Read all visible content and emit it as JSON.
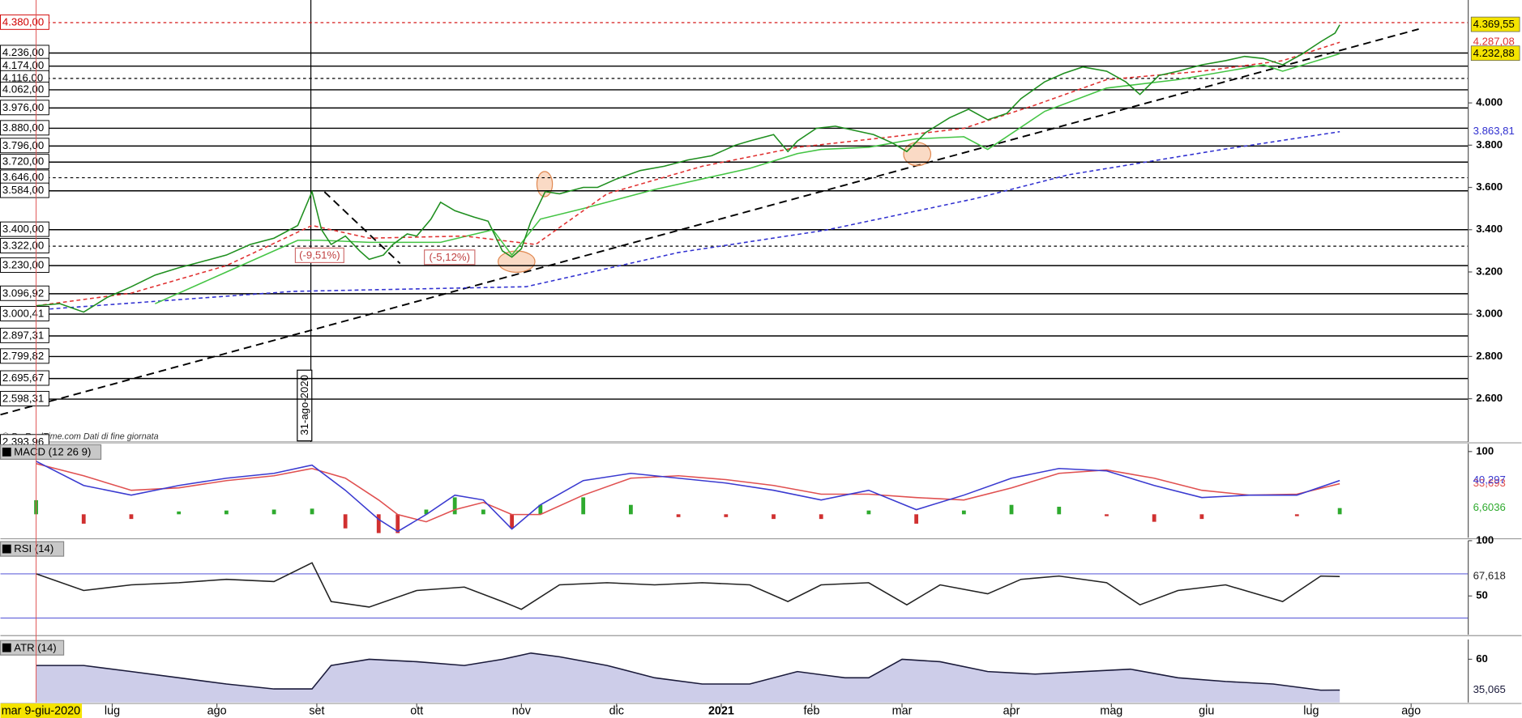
{
  "chart_data": [
    {
      "type": "line",
      "xlim": [
        -7.5,
        301
      ],
      "ylim": [
        2396,
        4487
      ],
      "yticks": [
        {
          "value": 4000,
          "label": "4.000"
        },
        {
          "value": 3800,
          "label": "3.800"
        },
        {
          "value": 3600,
          "label": "3.600"
        },
        {
          "value": 3400,
          "label": "3.400"
        },
        {
          "value": 3200,
          "label": "3.200"
        },
        {
          "value": 3000,
          "label": "3.000"
        },
        {
          "value": 2800,
          "label": "2.800"
        },
        {
          "value": 2600,
          "label": "2.600"
        }
      ],
      "levels": [
        {
          "value": 4380,
          "label": "4.380,00",
          "color": "#d00000",
          "dashed": true
        },
        {
          "value": 4236,
          "label": "4.236,00"
        },
        {
          "value": 4174,
          "label": "4.174,00"
        },
        {
          "value": 4116,
          "label": "4.116,00",
          "dashed": true
        },
        {
          "value": 4062,
          "label": "4.062,00"
        },
        {
          "value": 3976,
          "label": "3.976,00"
        },
        {
          "value": 3880,
          "label": "3.880,00"
        },
        {
          "value": 3796,
          "label": "3.796,00"
        },
        {
          "value": 3720,
          "label": "3.720,00"
        },
        {
          "value": 3646,
          "label": "3.646,00",
          "dashed": true
        },
        {
          "value": 3584,
          "label": "3.584,00"
        },
        {
          "value": 3400,
          "label": "3.400,00"
        },
        {
          "value": 3322,
          "label": "3.322,00",
          "dashed": true
        },
        {
          "value": 3230,
          "label": "3.230,00"
        },
        {
          "value": 3096.92,
          "label": "3.096,92"
        },
        {
          "value": 3000.41,
          "label": "3.000,41"
        },
        {
          "value": 2897.31,
          "label": "2.897,31"
        },
        {
          "value": 2799.82,
          "label": "2.799,82"
        },
        {
          "value": 2695.67,
          "label": "2.695,67"
        },
        {
          "value": 2598.31,
          "label": "2.598,31"
        },
        {
          "value": 2393.96,
          "label": "2.393,96"
        }
      ],
      "annotations": [
        "(-9,51%)",
        "(-5,12%)",
        "31-ago-2020",
        "© ProRealTime.com  Dati di fine giornata"
      ],
      "series": [
        {
          "color": "#3030d0",
          "dashed": true,
          "last_label": "3.863,81",
          "x": [
            0,
            54,
            103,
            135,
            166,
            197,
            217,
            248,
            274
          ],
          "values": [
            3020,
            3108,
            3130,
            3292,
            3398,
            3545,
            3660,
            3775,
            3863.81
          ]
        },
        {
          "color": "#44c444",
          "last_label": "4.232,88",
          "label_bg": "#f5e400",
          "label_color": "#000000",
          "x": [
            25,
            40,
            55,
            60,
            70,
            85,
            96,
            100,
            106,
            115,
            130,
            150,
            160,
            165,
            175,
            185,
            195,
            200,
            212,
            225,
            240,
            258,
            262,
            274
          ],
          "values": [
            3050,
            3200,
            3350,
            3350,
            3340,
            3340,
            3400,
            3280,
            3450,
            3500,
            3590,
            3690,
            3760,
            3780,
            3790,
            3830,
            3840,
            3780,
            3960,
            4070,
            4110,
            4180,
            4150,
            4232.88
          ]
        },
        {
          "color": "#e03030",
          "dashed": true,
          "last_label": "4.287,08",
          "x": [
            0,
            20,
            40,
            58,
            70,
            90,
            105,
            120,
            140,
            160,
            180,
            195,
            210,
            225,
            245,
            262,
            274
          ],
          "values": [
            3040,
            3100,
            3230,
            3420,
            3360,
            3370,
            3330,
            3570,
            3700,
            3790,
            3840,
            3880,
            3990,
            4110,
            4150,
            4200,
            4287.08
          ]
        },
        {
          "color": "#1f8f1f",
          "last_label": "4.369,55",
          "label_bg": "#f5e400",
          "label_color": "#000000",
          "x": [
            0,
            5,
            10,
            15,
            20,
            25,
            30,
            35,
            40,
            45,
            50,
            55,
            58,
            60,
            62,
            65,
            68,
            70,
            73,
            75,
            78,
            80,
            83,
            85,
            88,
            92,
            95,
            98,
            100,
            102,
            104,
            107,
            110,
            115,
            118,
            122,
            127,
            132,
            137,
            142,
            147,
            150,
            155,
            158,
            160,
            164,
            168,
            172,
            176,
            180,
            183,
            187,
            192,
            196,
            200,
            204,
            207,
            212,
            216,
            220,
            225,
            229,
            232,
            236,
            240,
            245,
            250,
            254,
            258,
            262,
            266,
            270,
            273,
            274
          ],
          "values": [
            3040,
            3050,
            3010,
            3080,
            3130,
            3185,
            3220,
            3250,
            3280,
            3330,
            3360,
            3420,
            3580,
            3400,
            3330,
            3370,
            3300,
            3260,
            3280,
            3330,
            3380,
            3370,
            3450,
            3530,
            3490,
            3460,
            3440,
            3300,
            3270,
            3310,
            3440,
            3580,
            3570,
            3600,
            3600,
            3640,
            3680,
            3700,
            3730,
            3750,
            3800,
            3820,
            3850,
            3770,
            3820,
            3880,
            3890,
            3870,
            3850,
            3810,
            3770,
            3860,
            3930,
            3970,
            3920,
            3950,
            4020,
            4100,
            4140,
            4170,
            4150,
            4100,
            4040,
            4130,
            4150,
            4180,
            4200,
            4220,
            4210,
            4180,
            4230,
            4290,
            4330,
            4369.55
          ]
        }
      ]
    },
    {
      "type": "line",
      "title": "MACD (12 26 9)",
      "xlim": [
        -7.5,
        301
      ],
      "ylim": [
        -78,
        116
      ],
      "yticks": [
        100
      ],
      "y2lim": [
        -25,
        75
      ],
      "series": [
        {
          "kind": "bar",
          "axis": "y2",
          "color": "#2eaa2e",
          "neg_color": "#d03030",
          "last_label": "6,6036",
          "x": [
            0,
            10,
            20,
            30,
            40,
            50,
            58,
            65,
            72,
            76,
            82,
            88,
            94,
            100,
            106,
            115,
            125,
            135,
            145,
            155,
            165,
            175,
            185,
            195,
            205,
            215,
            225,
            235,
            245,
            255,
            265,
            274
          ],
          "values": [
            15,
            -10,
            -5,
            3,
            4,
            5,
            6,
            -15,
            -20,
            -20,
            5,
            18,
            5,
            -15,
            10,
            18,
            10,
            -3,
            -3,
            -5,
            -5,
            4,
            -10,
            4,
            10,
            8,
            -2,
            -8,
            -5,
            0,
            -2,
            6.6036
          ]
        },
        {
          "color": "#e05050",
          "last_label": "33,693",
          "x": [
            0,
            10,
            20,
            30,
            40,
            50,
            58,
            65,
            72,
            76,
            82,
            88,
            94,
            100,
            106,
            115,
            125,
            135,
            145,
            155,
            165,
            175,
            185,
            195,
            205,
            215,
            225,
            235,
            245,
            255,
            265,
            274
          ],
          "values": [
            75,
            50,
            20,
            25,
            40,
            50,
            65,
            45,
            0,
            -30,
            -45,
            -20,
            -5,
            -30,
            -30,
            10,
            45,
            50,
            42,
            30,
            12,
            12,
            5,
            0,
            25,
            55,
            62,
            45,
            20,
            10,
            12,
            33.693
          ]
        },
        {
          "color": "#3a3ad0",
          "last_label": "40,297",
          "x": [
            0,
            10,
            20,
            30,
            40,
            50,
            58,
            65,
            72,
            76,
            82,
            88,
            94,
            100,
            106,
            115,
            125,
            135,
            145,
            155,
            165,
            175,
            185,
            195,
            205,
            215,
            225,
            235,
            245,
            255,
            265,
            274
          ],
          "values": [
            80,
            30,
            10,
            30,
            45,
            55,
            72,
            20,
            -40,
            -65,
            -30,
            10,
            0,
            -60,
            -10,
            40,
            55,
            45,
            35,
            20,
            0,
            20,
            -20,
            10,
            45,
            65,
            60,
            30,
            5,
            10,
            10,
            40.297
          ]
        }
      ]
    },
    {
      "type": "line",
      "title": "RSI (14)",
      "xlim": [
        -7.5,
        301
      ],
      "ylim": [
        15,
        100
      ],
      "yticks": [
        100,
        50
      ],
      "hlines": [
        70,
        30
      ],
      "hline_color": "#3a3ad0",
      "series": [
        {
          "color": "#222222",
          "last_label": "67,618",
          "x": [
            0,
            10,
            20,
            30,
            40,
            50,
            58,
            62,
            70,
            80,
            90,
            98,
            102,
            110,
            120,
            130,
            140,
            150,
            158,
            165,
            175,
            183,
            190,
            200,
            207,
            215,
            225,
            232,
            240,
            250,
            262,
            270,
            274
          ],
          "values": [
            70,
            55,
            60,
            62,
            65,
            63,
            80,
            45,
            40,
            55,
            58,
            45,
            38,
            60,
            62,
            60,
            62,
            60,
            45,
            60,
            62,
            42,
            60,
            52,
            65,
            68,
            62,
            42,
            55,
            60,
            45,
            68,
            67.618
          ]
        }
      ]
    },
    {
      "type": "area",
      "title": "ATR (14)",
      "xlim": [
        -7.5,
        301
      ],
      "ylim": [
        25,
        76
      ],
      "yticks": [
        60
      ],
      "cursor": {
        "value": 0,
        "label": "mar 9-giu-2020"
      },
      "xticks": [
        {
          "value": 16,
          "label": "lug"
        },
        {
          "value": 38,
          "label": "ago"
        },
        {
          "value": 59,
          "label": "set"
        },
        {
          "value": 80,
          "label": "ott"
        },
        {
          "value": 102,
          "label": "nov"
        },
        {
          "value": 122,
          "label": "dic"
        },
        {
          "value": 144,
          "label": "2021"
        },
        {
          "value": 163,
          "label": "feb"
        },
        {
          "value": 182,
          "label": "mar"
        },
        {
          "value": 205,
          "label": "apr"
        },
        {
          "value": 226,
          "label": "mag"
        },
        {
          "value": 246,
          "label": "giu"
        },
        {
          "value": 268,
          "label": "lug"
        },
        {
          "value": 289,
          "label": "ago"
        }
      ],
      "series": [
        {
          "color": "#1a1a3a",
          "fill": "#b8b8e0",
          "last_label": "35,065",
          "x": [
            0,
            10,
            20,
            30,
            40,
            50,
            58,
            62,
            70,
            80,
            90,
            98,
            104,
            110,
            120,
            130,
            140,
            150,
            160,
            170,
            175,
            182,
            190,
            200,
            210,
            220,
            230,
            240,
            250,
            260,
            270,
            274
          ],
          "values": [
            55,
            55,
            50,
            45,
            40,
            36,
            36,
            55,
            60,
            58,
            55,
            60,
            65,
            62,
            55,
            45,
            40,
            40,
            50,
            45,
            45,
            60,
            58,
            50,
            48,
            50,
            52,
            45,
            42,
            40,
            35,
            35.065
          ]
        }
      ]
    }
  ]
}
